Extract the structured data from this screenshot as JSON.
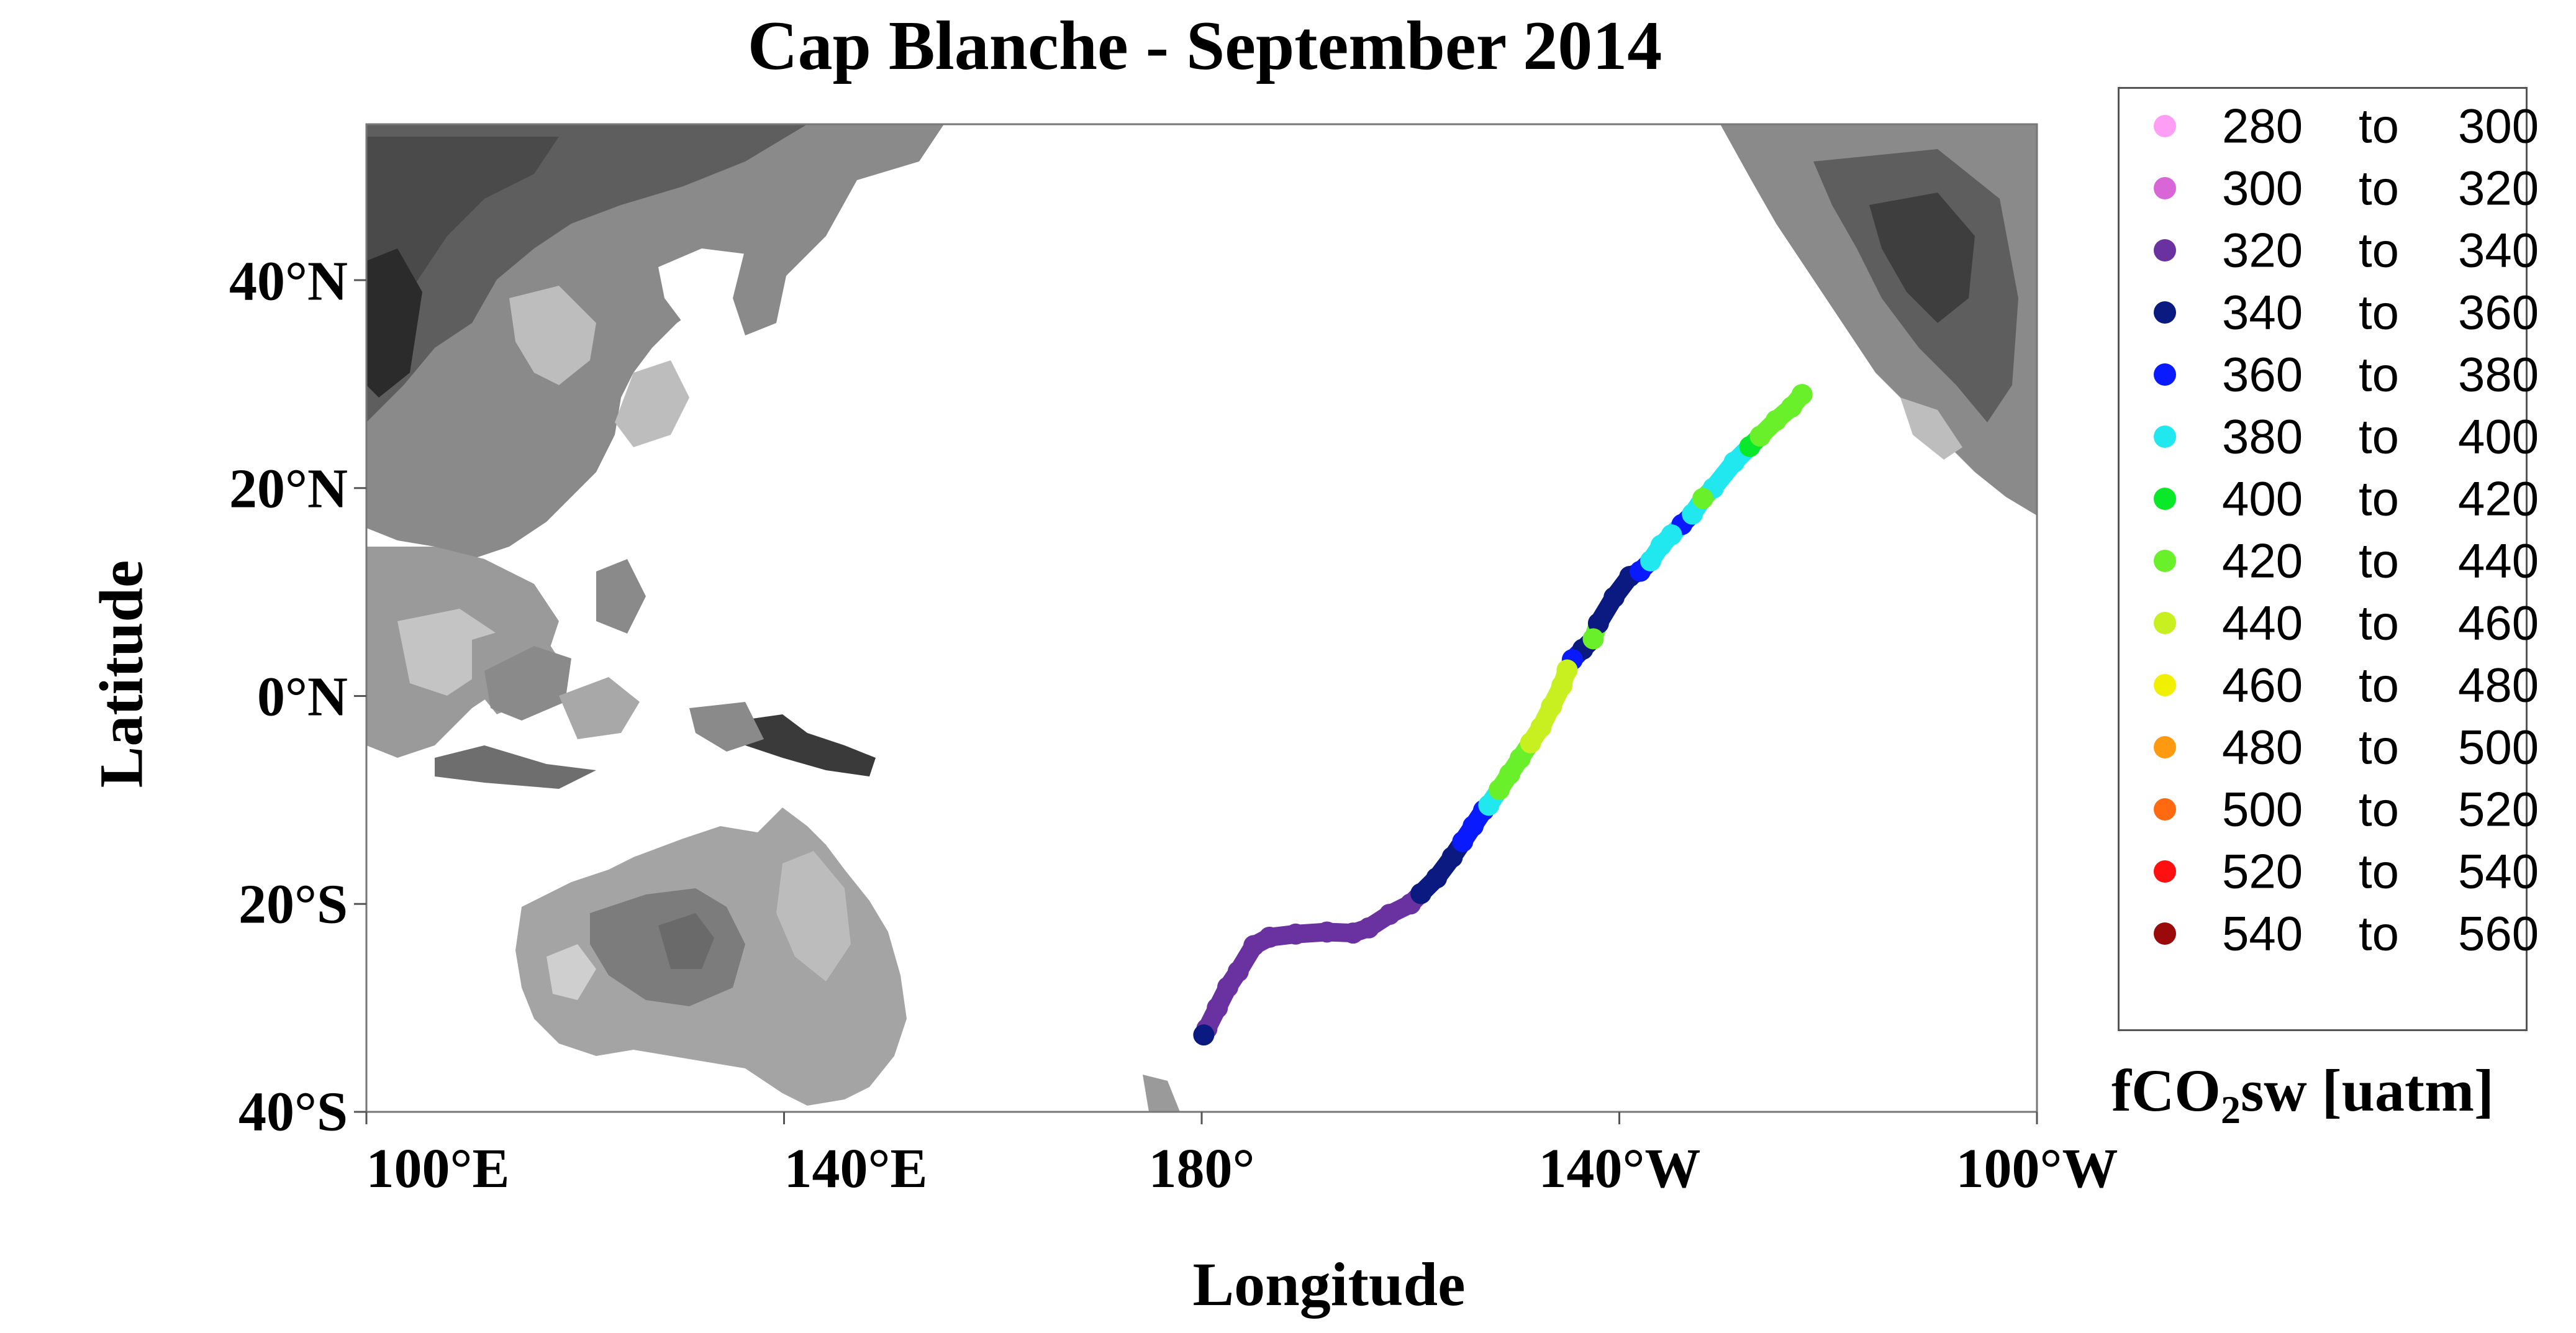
{
  "map": {
    "title": "Cap Blanche - September 2014",
    "xlabel": "Longitude",
    "ylabel": "Latitude",
    "lon_ticks": [
      "100°E",
      "140°E",
      "180°",
      "140°W",
      "100°W"
    ],
    "lat_ticks": [
      "40°N",
      "20°N",
      "0°N",
      "20°S",
      "40°S"
    ],
    "lon_range_deg_east": [
      100,
      260
    ],
    "lat_range_deg": [
      -40,
      55
    ],
    "background": "greyscale land topography, white ocean"
  },
  "legend": {
    "title_main": "fCO",
    "title_sub": "2",
    "title_rest": "sw [uatm]",
    "to_word": "to",
    "entries": [
      {
        "from": "280",
        "to": "300",
        "color": "#ff9ef5"
      },
      {
        "from": "300",
        "to": "320",
        "color": "#d966d6"
      },
      {
        "from": "320",
        "to": "340",
        "color": "#6a32a0"
      },
      {
        "from": "340",
        "to": "360",
        "color": "#0a1a80"
      },
      {
        "from": "360",
        "to": "380",
        "color": "#0a1aff"
      },
      {
        "from": "380",
        "to": "400",
        "color": "#20e8ee"
      },
      {
        "from": "400",
        "to": "420",
        "color": "#0ae82a"
      },
      {
        "from": "420",
        "to": "440",
        "color": "#6af02a"
      },
      {
        "from": "440",
        "to": "460",
        "color": "#c8f020"
      },
      {
        "from": "460",
        "to": "480",
        "color": "#f0f000"
      },
      {
        "from": "480",
        "to": "500",
        "color": "#ff9a10"
      },
      {
        "from": "500",
        "to": "520",
        "color": "#ff6a10"
      },
      {
        "from": "520",
        "to": "540",
        "color": "#ff1010"
      },
      {
        "from": "540",
        "to": "560",
        "color": "#9a0a0a"
      }
    ]
  },
  "chart_data": {
    "type": "scatter",
    "title": "Cap Blanche - September 2014",
    "xlabel": "Longitude",
    "ylabel": "Latitude",
    "x_unit": "degrees east",
    "y_unit": "degrees north",
    "xlim": [
      100,
      260
    ],
    "ylim": [
      -40,
      55
    ],
    "series": [
      {
        "name": "320 to 340",
        "color": "#6a32a0",
        "points": [
          [
            180.5,
            -32
          ],
          [
            181.5,
            -30
          ],
          [
            182.5,
            -28
          ],
          [
            183.5,
            -26.5
          ],
          [
            185,
            -24
          ],
          [
            186.5,
            -23.2
          ],
          [
            189,
            -22.9
          ],
          [
            192,
            -22.7
          ],
          [
            194.5,
            -22.8
          ],
          [
            196,
            -22.3
          ],
          [
            198,
            -21
          ],
          [
            200,
            -20
          ]
        ]
      },
      {
        "name": "340 to 360",
        "color": "#0a1a80",
        "points": [
          [
            180.2,
            -32.6
          ],
          [
            201,
            -19
          ],
          [
            202.5,
            -17.5
          ],
          [
            204,
            -15.5
          ],
          [
            216.5,
            4.5
          ],
          [
            218,
            7
          ],
          [
            219.5,
            9.5
          ],
          [
            221,
            11.5
          ]
        ]
      },
      {
        "name": "360 to 380",
        "color": "#0a1aff",
        "points": [
          [
            205,
            -14
          ],
          [
            206,
            -12.5
          ],
          [
            207,
            -11
          ],
          [
            215.5,
            3.5
          ],
          [
            222,
            12
          ],
          [
            226,
            16.5
          ]
        ]
      },
      {
        "name": "380 to 400",
        "color": "#20e8ee",
        "points": [
          [
            207.5,
            -10.5
          ],
          [
            223,
            13
          ],
          [
            224,
            14.5
          ],
          [
            225,
            15.5
          ],
          [
            227,
            17.5
          ],
          [
            229,
            20
          ],
          [
            231,
            22.5
          ]
        ]
      },
      {
        "name": "400 to 420",
        "color": "#0ae82a",
        "points": [
          [
            232.5,
            24
          ]
        ]
      },
      {
        "name": "420 to 440",
        "color": "#6af02a",
        "points": [
          [
            208.5,
            -9
          ],
          [
            209.5,
            -7.5
          ],
          [
            210.5,
            -6
          ],
          [
            217.5,
            5.5
          ],
          [
            228,
            19
          ],
          [
            233.5,
            25
          ],
          [
            235,
            26.5
          ],
          [
            236.5,
            27.8
          ],
          [
            237.5,
            29
          ]
        ]
      },
      {
        "name": "440 to 460",
        "color": "#c8f020",
        "points": [
          [
            211.5,
            -4.5
          ],
          [
            212.5,
            -3
          ],
          [
            213.5,
            -1
          ],
          [
            214.5,
            1
          ],
          [
            215,
            2.5
          ]
        ]
      }
    ]
  }
}
